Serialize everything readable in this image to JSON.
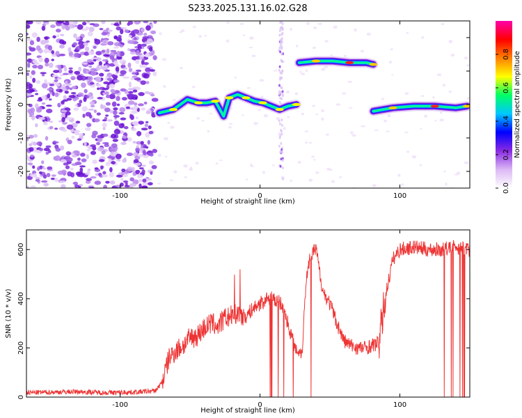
{
  "chart_data": [
    {
      "type": "heatmap",
      "title": "S233.2025.131.16.02.G28",
      "xlabel": "Height of straight line (km)",
      "ylabel": "Frequency (Hz)",
      "xlim": [
        -167,
        150
      ],
      "ylim": [
        -25,
        25
      ],
      "xticks": [
        -100,
        0,
        100
      ],
      "yticks": [
        -20,
        -10,
        0,
        10,
        20
      ],
      "colorbar": {
        "label": "Normalized spectral amplitude",
        "range": [
          0,
          1
        ],
        "ticks": [
          "0.0",
          "0.2",
          "0.4",
          "0.6",
          "0.8"
        ],
        "colors": [
          "#ffffff",
          "#dcb8f5",
          "#8a2be2",
          "#0000ff",
          "#00c8ff",
          "#00ff66",
          "#ffff00",
          "#ff8000",
          "#ff0000",
          "#ff00aa"
        ]
      },
      "tracks": [
        {
          "x": [
            -72,
            -62,
            -52,
            -44,
            -38,
            -32,
            -26,
            -22,
            -16,
            -10,
            -4,
            2,
            8,
            14,
            20,
            26
          ],
          "y": [
            -2.5,
            -1.5,
            1.5,
            0.5,
            0.5,
            1,
            -3.5,
            2,
            3,
            2,
            1,
            0.5,
            -0.5,
            -1.5,
            -0.5,
            0
          ]
        },
        {
          "x": [
            28,
            40,
            52,
            64,
            76,
            81
          ],
          "y": [
            12.5,
            13,
            13,
            12.5,
            12.5,
            12
          ]
        },
        {
          "x": [
            81,
            95,
            110,
            125,
            140,
            148
          ],
          "y": [
            -2,
            -1,
            -0.5,
            -0.5,
            -1,
            -0.5
          ]
        }
      ]
    },
    {
      "type": "line",
      "xlabel": "Height of straight line (km)",
      "ylabel": "SNR (10 * v/v)",
      "xlim": [
        -167,
        150
      ],
      "ylim": [
        0,
        680
      ],
      "xticks": [
        -100,
        0,
        100
      ],
      "yticks": [
        0,
        200,
        400,
        600
      ],
      "color": "#ee3333",
      "x": [
        -167,
        -150,
        -130,
        -110,
        -90,
        -75,
        -70,
        -65,
        -60,
        -55,
        -50,
        -45,
        -40,
        -35,
        -30,
        -25,
        -20,
        -15,
        -10,
        -5,
        0,
        5,
        10,
        15,
        20,
        25,
        30,
        33,
        36,
        40,
        45,
        50,
        55,
        60,
        65,
        70,
        75,
        80,
        85,
        90,
        95,
        100,
        110,
        120,
        130,
        140,
        150
      ],
      "values": [
        18,
        20,
        22,
        18,
        20,
        25,
        60,
        160,
        190,
        210,
        240,
        250,
        280,
        300,
        290,
        320,
        330,
        340,
        330,
        360,
        380,
        400,
        400,
        380,
        300,
        200,
        180,
        480,
        580,
        600,
        430,
        380,
        300,
        230,
        210,
        200,
        200,
        210,
        220,
        420,
        560,
        600,
        610,
        600,
        600,
        610,
        600
      ]
    }
  ]
}
